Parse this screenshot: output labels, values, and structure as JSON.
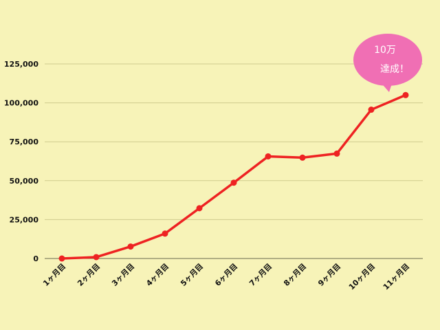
{
  "chart_data": {
    "type": "line",
    "categories": [
      "1ヶ月目",
      "2ヶ月目",
      "3ヶ月目",
      "4ヶ月目",
      "5ヶ月目",
      "6ヶ月目",
      "7ヶ月目",
      "8ヶ月目",
      "9ヶ月目",
      "10ヶ月目",
      "11ヶ月目"
    ],
    "series": [
      {
        "values": [
          0,
          900,
          7700,
          16000,
          32300,
          48700,
          65600,
          64800,
          67400,
          95600,
          105000
        ]
      }
    ],
    "ylim": [
      0,
      125000
    ],
    "yticks": [
      "0",
      "25,000",
      "50,000",
      "75,000",
      "100,000",
      "125,000"
    ],
    "ytick_values": [
      0,
      25000,
      50000,
      75000,
      100000,
      125000
    ],
    "grid": true,
    "line_color": "#ee2222",
    "grid_color": "#cfcb8e",
    "annotation": {
      "line1": "10万",
      "line2": "達成！",
      "color": "#f06fb4"
    }
  }
}
